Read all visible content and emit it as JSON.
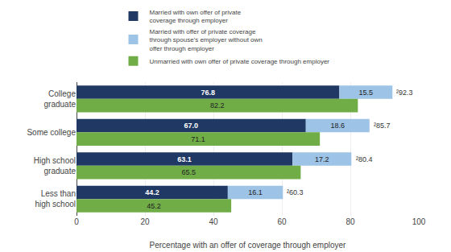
{
  "chart_data": {
    "type": "bar",
    "orientation": "horizontal",
    "categories": [
      "College\ngraduate",
      "Some college",
      "High school\ngraduate",
      "Less than\nhigh school"
    ],
    "series": [
      {
        "name": "Married with own offer of private\ncoverage through employer",
        "color": "#1f3864",
        "stacked": true,
        "values": [
          76.8,
          67.0,
          63.1,
          44.2
        ],
        "value_labels": [
          "76.8",
          "67.0",
          "63.1",
          "44.2"
        ]
      },
      {
        "name": "Married with offer of private coverage\nthrough spouse's employer without own\noffer through employer",
        "color": "#9dc3e6",
        "stacked": true,
        "values": [
          15.5,
          18.6,
          17.2,
          16.1
        ]
      },
      {
        "name": "Unmarried with own offer of private coverage through employer",
        "color": "#70ad47",
        "stacked": false,
        "values": [
          82.2,
          71.1,
          65.5,
          45.2
        ]
      }
    ],
    "totals": [
      92.3,
      85.7,
      80.4,
      60.3
    ],
    "total_labels": [
      "²92.3",
      "²85.7",
      "²80.4",
      "²60.3"
    ],
    "xlabel": "Percentage with an offer of coverage through employer",
    "xlim": [
      0,
      100
    ],
    "xticks": [
      0,
      20,
      40,
      60,
      80,
      100
    ],
    "grid": true,
    "data_labels": true,
    "legend": "top"
  }
}
